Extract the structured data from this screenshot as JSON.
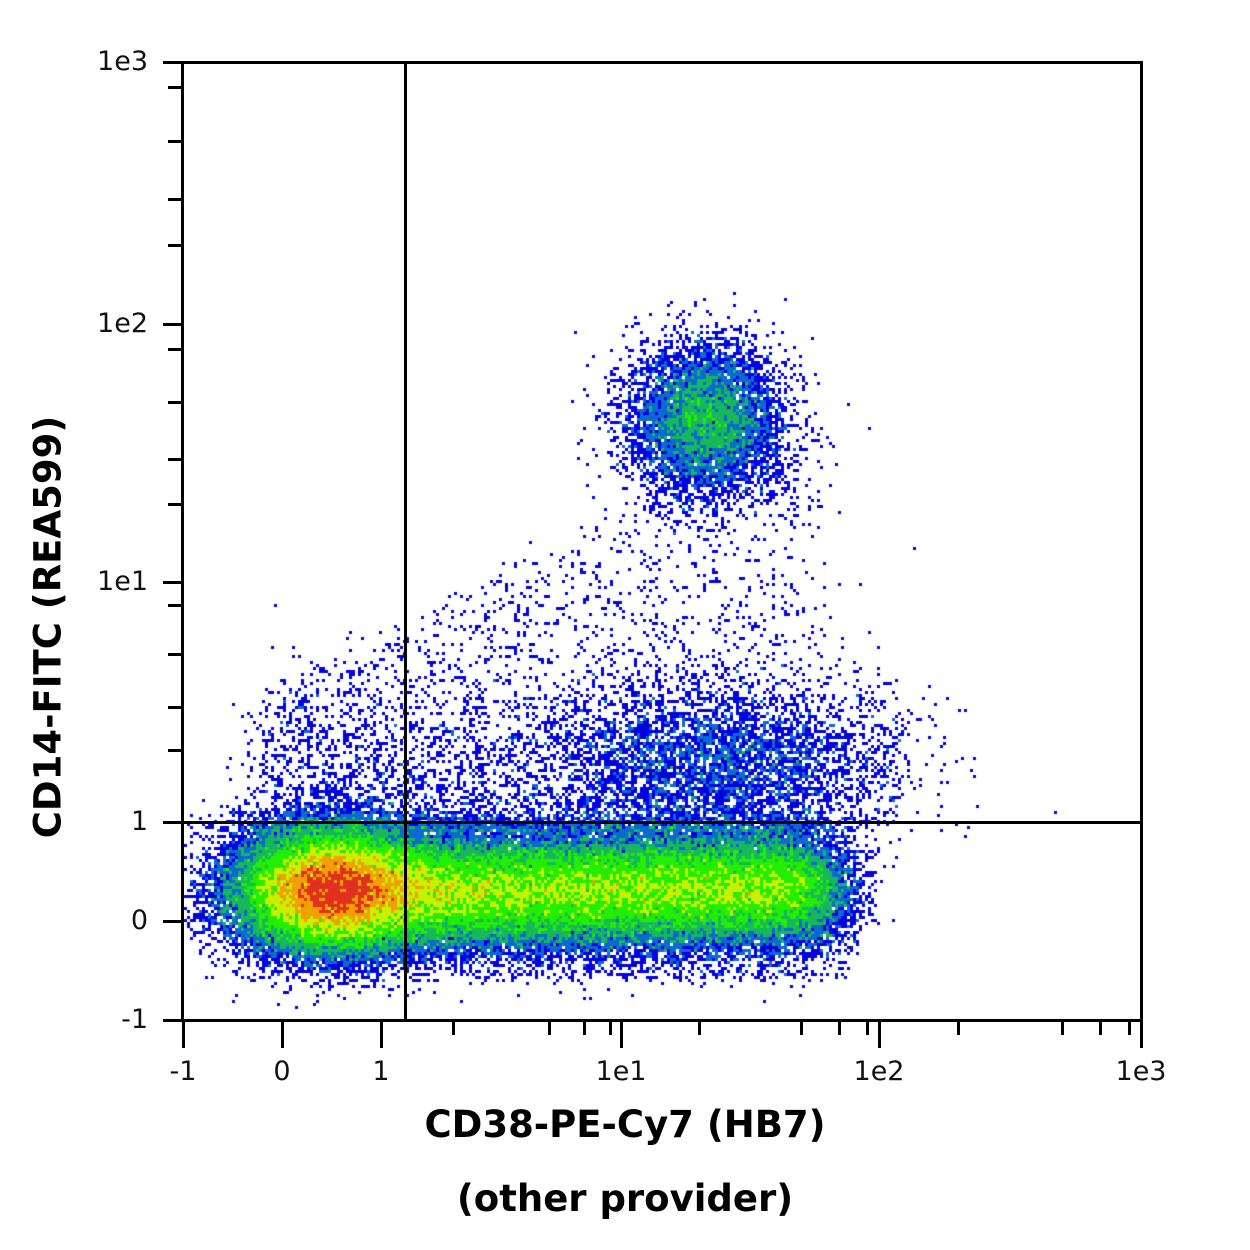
{
  "chart_data": {
    "type": "scatter",
    "subtype": "flow-cytometry density dot plot (pseudocolor)",
    "title": "",
    "xlabel": "CD38-PE-Cy7 (HB7)",
    "xlabel_line2": "(other provider)",
    "ylabel": "CD14-FITC (REA599)",
    "x_scale": "biexponential (linear near 0, log above 1)",
    "y_scale": "biexponential (linear near 0, log above 1)",
    "x_ticks": [
      "-1",
      "0",
      "1",
      "1e1",
      "1e2",
      "1e3"
    ],
    "y_ticks": [
      "-1",
      "0",
      "1",
      "1e1",
      "1e2",
      "1e3"
    ],
    "xlim": [
      -1,
      1000
    ],
    "ylim": [
      -1,
      1000
    ],
    "grid": false,
    "legend": null,
    "quadrant_gates": {
      "x": 1.2,
      "y": 1
    },
    "colormap": [
      "#0000e0",
      "#0a6ad0",
      "#17b85a",
      "#22ee00",
      "#c8f000",
      "#f0a000",
      "#e03020"
    ],
    "populations": [
      {
        "name": "CD38- CD14- (dense, lower left)",
        "x_center": 0.6,
        "y_center": 0.3,
        "peak_color": "red/orange",
        "relative_size": 0.34
      },
      {
        "name": "CD38+ CD14- (horizontal band)",
        "x_range": [
          1.2,
          60
        ],
        "y_center": 0.3,
        "peak_color": "green/yellow",
        "relative_size": 0.42
      },
      {
        "name": "CD38+ CD14 dim (upper band)",
        "x_range": [
          3,
          80
        ],
        "y_range": [
          1,
          5
        ],
        "peak_color": "blue/teal",
        "relative_size": 0.12
      },
      {
        "name": "CD38+ CD14+ monocytes",
        "x_center": 20,
        "y_center": 45,
        "peak_color": "green",
        "relative_size": 0.07
      },
      {
        "name": "sparse scatter (upper left triangle)",
        "x_range": [
          -0.5,
          50
        ],
        "y_range": [
          1,
          120
        ],
        "peak_color": "blue",
        "relative_size": 0.05
      }
    ]
  },
  "axes": {
    "x": {
      "title": "CD38-PE-Cy7 (HB7)",
      "subtitle": "(other provider)",
      "tick_labels": [
        "-1",
        "0",
        "1",
        "1e1",
        "1e2",
        "1e3"
      ]
    },
    "y": {
      "title": "CD14-FITC (REA599)",
      "tick_labels": [
        "-1",
        "0",
        "1",
        "1e1",
        "1e2",
        "1e3"
      ]
    }
  }
}
